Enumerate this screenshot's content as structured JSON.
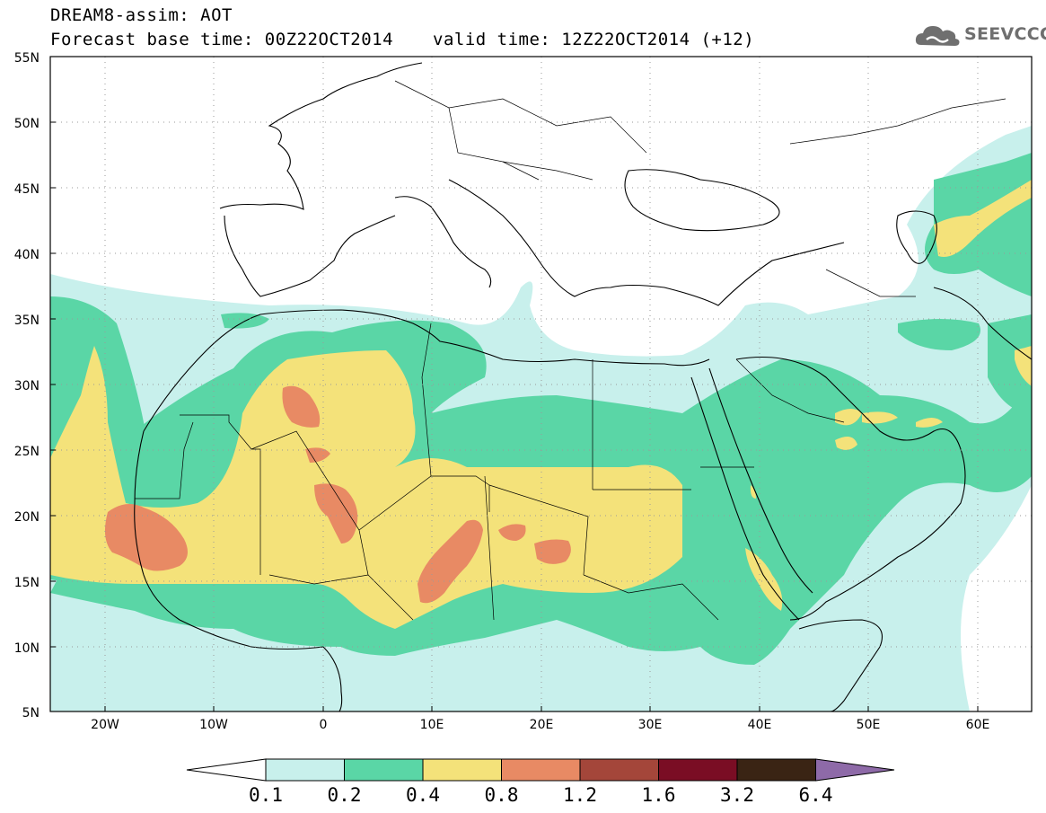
{
  "header": {
    "title": "DREAM8-assim: AOT",
    "base_time": "Forecast base time: 00Z22OCT2014",
    "valid_time": "valid time: 12Z22OCT2014 (+12)",
    "logo_text": "SEEVCCC",
    "logo_icon": "cloud-icon"
  },
  "map": {
    "lat_labels": [
      "55N",
      "50N",
      "45N",
      "40N",
      "35N",
      "30N",
      "25N",
      "20N",
      "15N",
      "10N",
      "5N"
    ],
    "lon_labels": [
      "20W",
      "10W",
      "0",
      "10E",
      "20E",
      "30E",
      "40E",
      "50E",
      "60E"
    ],
    "colors": {
      "c1": "#c8f0ec",
      "c2": "#5ad6a6",
      "c3": "#f4e27a",
      "c4": "#e88a64",
      "c5": "#a4463a",
      "c6": "#7a0d24",
      "c7": "#3a2414",
      "c8": "#8e6aa8"
    }
  },
  "colorbar": {
    "labels": [
      "0.1",
      "0.2",
      "0.4",
      "0.8",
      "1.2",
      "1.6",
      "3.2",
      "6.4"
    ]
  }
}
